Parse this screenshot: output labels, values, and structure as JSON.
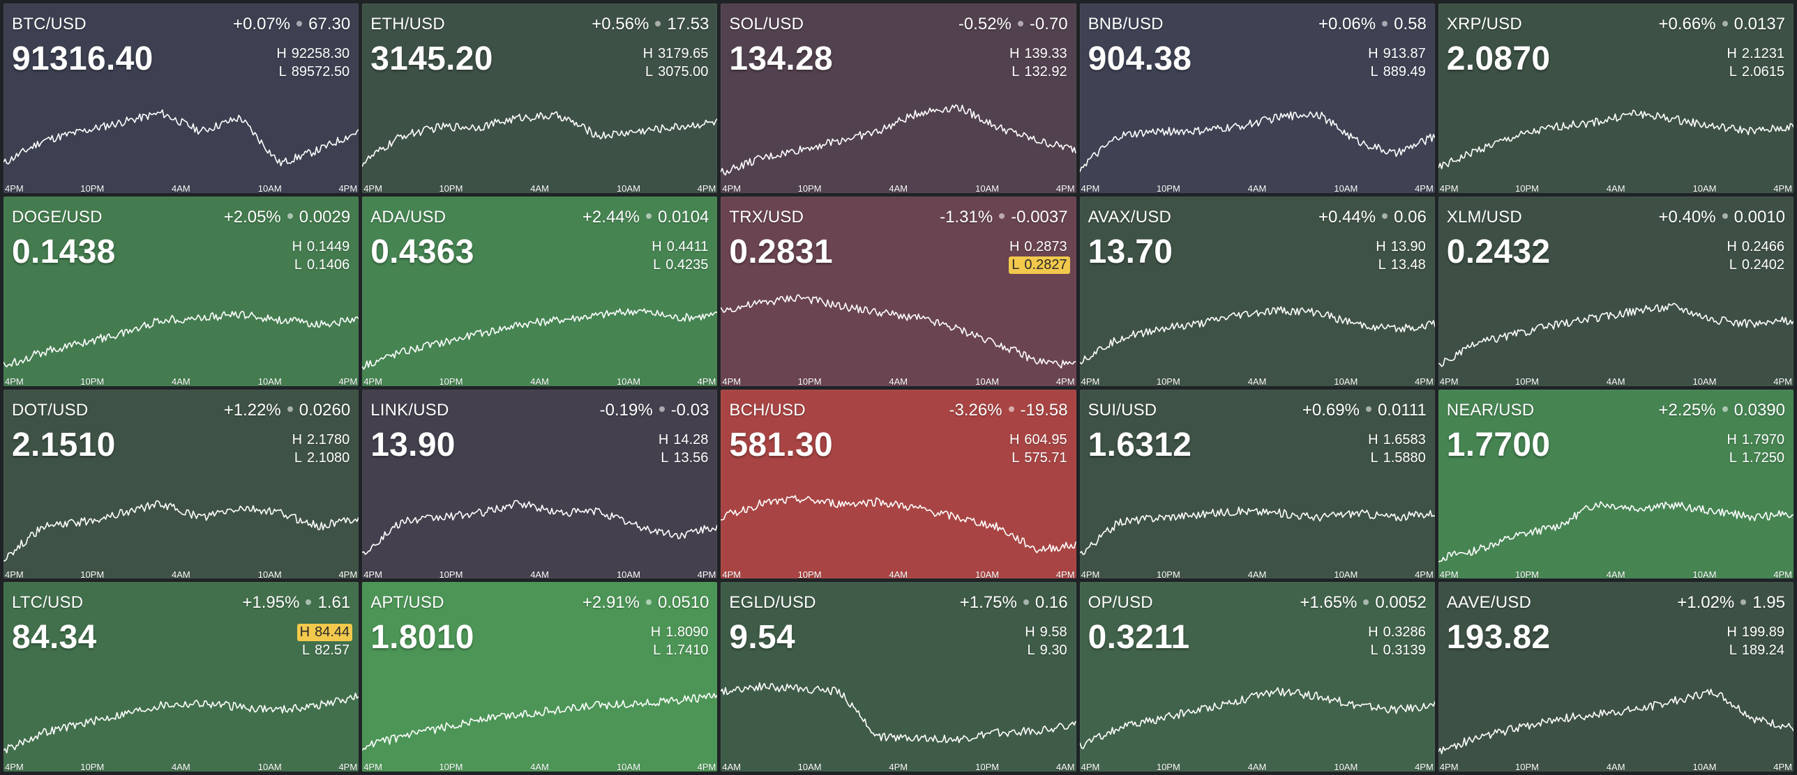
{
  "tiles": [
    {
      "symbol": "BTC/USD",
      "change_pct": "+0.07%",
      "change_abs": "67.30",
      "price": "91316.40",
      "high": "92258.30",
      "low": "89572.50",
      "color": "#3c4050",
      "trend": [
        0.2,
        0.45,
        0.55,
        0.65,
        0.75,
        0.55,
        0.7,
        0.2,
        0.35,
        0.55
      ],
      "ticks": [
        "4PM",
        "10PM",
        "4AM",
        "10AM",
        "4PM"
      ]
    },
    {
      "symbol": "ETH/USD",
      "change_pct": "+0.56%",
      "change_abs": "17.53",
      "price": "3145.20",
      "high": "3179.65",
      "low": "3075.00",
      "color": "#3e5146",
      "trend": [
        0.2,
        0.5,
        0.6,
        0.6,
        0.7,
        0.72,
        0.5,
        0.55,
        0.6,
        0.65
      ],
      "ticks": [
        "4PM",
        "10PM",
        "4AM",
        "10AM",
        "4PM"
      ]
    },
    {
      "symbol": "SOL/USD",
      "change_pct": "-0.52%",
      "change_abs": "-0.70",
      "price": "134.28",
      "high": "139.33",
      "low": "132.92",
      "color": "#52414e",
      "trend": [
        0.1,
        0.25,
        0.35,
        0.45,
        0.55,
        0.75,
        0.82,
        0.6,
        0.45,
        0.35
      ],
      "ticks": [
        "4PM",
        "10PM",
        "4AM",
        "10AM",
        "4PM"
      ]
    },
    {
      "symbol": "BNB/USD",
      "change_pct": "+0.06%",
      "change_abs": "0.58",
      "price": "904.38",
      "high": "913.87",
      "low": "889.49",
      "color": "#3e4253",
      "trend": [
        0.15,
        0.5,
        0.55,
        0.55,
        0.6,
        0.7,
        0.75,
        0.45,
        0.3,
        0.5
      ],
      "ticks": [
        "4PM",
        "10PM",
        "4AM",
        "10AM",
        "4PM"
      ]
    },
    {
      "symbol": "XRP/USD",
      "change_pct": "+0.66%",
      "change_abs": "0.0137",
      "price": "2.0870",
      "high": "2.1231",
      "low": "2.0615",
      "color": "#3d5145",
      "trend": [
        0.15,
        0.35,
        0.5,
        0.6,
        0.65,
        0.75,
        0.68,
        0.6,
        0.55,
        0.6
      ],
      "ticks": [
        "4PM",
        "10PM",
        "4AM",
        "10AM",
        "4PM"
      ]
    },
    {
      "symbol": "DOGE/USD",
      "change_pct": "+2.05%",
      "change_abs": "0.0029",
      "price": "0.1438",
      "high": "0.1449",
      "low": "0.1406",
      "color": "#447c4f",
      "trend": [
        0.1,
        0.25,
        0.35,
        0.45,
        0.6,
        0.62,
        0.66,
        0.6,
        0.55,
        0.6
      ],
      "ticks": [
        "4PM",
        "10PM",
        "4AM",
        "10AM",
        "4PM"
      ]
    },
    {
      "symbol": "ADA/USD",
      "change_pct": "+2.44%",
      "change_abs": "0.0104",
      "price": "0.4363",
      "high": "0.4411",
      "low": "0.4235",
      "color": "#468452",
      "trend": [
        0.1,
        0.25,
        0.35,
        0.45,
        0.55,
        0.6,
        0.65,
        0.7,
        0.62,
        0.65
      ],
      "ticks": [
        "4PM",
        "10PM",
        "4AM",
        "10AM",
        "4PM"
      ]
    },
    {
      "symbol": "TRX/USD",
      "change_pct": "-1.31%",
      "change_abs": "-0.0037",
      "price": "0.2831",
      "high": "0.2873",
      "low": "0.2827",
      "color": "#6a4451",
      "trend": [
        0.7,
        0.78,
        0.85,
        0.75,
        0.68,
        0.62,
        0.5,
        0.35,
        0.15,
        0.1
      ],
      "ticks": [
        "4PM",
        "10PM",
        "4AM",
        "10AM",
        "4PM"
      ],
      "low_hit": true
    },
    {
      "symbol": "AVAX/USD",
      "change_pct": "+0.44%",
      "change_abs": "0.06",
      "price": "13.70",
      "high": "13.90",
      "low": "13.48",
      "color": "#3f5246",
      "trend": [
        0.15,
        0.4,
        0.5,
        0.55,
        0.65,
        0.7,
        0.68,
        0.55,
        0.5,
        0.55
      ],
      "ticks": [
        "4PM",
        "10PM",
        "4AM",
        "10AM",
        "4PM"
      ]
    },
    {
      "symbol": "XLM/USD",
      "change_pct": "+0.40%",
      "change_abs": "0.0010",
      "price": "0.2432",
      "high": "0.2466",
      "low": "0.2402",
      "color": "#3e5045",
      "trend": [
        0.1,
        0.35,
        0.45,
        0.55,
        0.62,
        0.7,
        0.75,
        0.6,
        0.55,
        0.6
      ],
      "ticks": [
        "4PM",
        "10PM",
        "4AM",
        "10AM",
        "4PM"
      ]
    },
    {
      "symbol": "DOT/USD",
      "change_pct": "+1.22%",
      "change_abs": "0.0260",
      "price": "2.1510",
      "high": "2.1780",
      "low": "2.1080",
      "color": "#3f5246",
      "trend": [
        0.1,
        0.45,
        0.5,
        0.6,
        0.7,
        0.55,
        0.65,
        0.6,
        0.45,
        0.55
      ],
      "ticks": [
        "4PM",
        "10PM",
        "4AM",
        "10AM",
        "4PM"
      ]
    },
    {
      "symbol": "LINK/USD",
      "change_pct": "-0.19%",
      "change_abs": "-0.03",
      "price": "13.90",
      "high": "14.28",
      "low": "13.56",
      "color": "#44404e",
      "trend": [
        0.15,
        0.5,
        0.55,
        0.6,
        0.7,
        0.6,
        0.62,
        0.45,
        0.35,
        0.45
      ],
      "ticks": [
        "4PM",
        "10PM",
        "4AM",
        "10AM",
        "4PM"
      ]
    },
    {
      "symbol": "BCH/USD",
      "change_pct": "-3.26%",
      "change_abs": "-19.58",
      "price": "581.30",
      "high": "604.95",
      "low": "575.71",
      "color": "#a84544",
      "trend": [
        0.55,
        0.7,
        0.75,
        0.7,
        0.72,
        0.65,
        0.55,
        0.45,
        0.2,
        0.25
      ],
      "ticks": [
        "4PM",
        "10PM",
        "4AM",
        "10AM",
        "4PM"
      ]
    },
    {
      "symbol": "SUI/USD",
      "change_pct": "+0.69%",
      "change_abs": "0.0111",
      "price": "1.6312",
      "high": "1.6583",
      "low": "1.5880",
      "color": "#3f5246",
      "trend": [
        0.15,
        0.5,
        0.55,
        0.58,
        0.62,
        0.6,
        0.55,
        0.6,
        0.55,
        0.6
      ],
      "ticks": [
        "4PM",
        "10PM",
        "4AM",
        "10AM",
        "4PM"
      ]
    },
    {
      "symbol": "NEAR/USD",
      "change_pct": "+2.25%",
      "change_abs": "0.0390",
      "price": "1.7700",
      "high": "1.7970",
      "low": "1.7250",
      "color": "#468452",
      "trend": [
        0.1,
        0.2,
        0.35,
        0.45,
        0.7,
        0.65,
        0.68,
        0.62,
        0.55,
        0.6
      ],
      "ticks": [
        "4PM",
        "10PM",
        "4AM",
        "10AM",
        "4PM"
      ]
    },
    {
      "symbol": "LTC/USD",
      "change_pct": "+1.95%",
      "change_abs": "1.61",
      "price": "84.34",
      "high": "84.44",
      "low": "82.57",
      "color": "#42704c",
      "trend": [
        0.1,
        0.3,
        0.4,
        0.5,
        0.6,
        0.62,
        0.58,
        0.55,
        0.6,
        0.7
      ],
      "ticks": [
        "4PM",
        "10PM",
        "4AM",
        "10AM",
        "4PM"
      ],
      "high_hit": true
    },
    {
      "symbol": "APT/USD",
      "change_pct": "+2.91%",
      "change_abs": "0.0510",
      "price": "1.8010",
      "high": "1.8090",
      "low": "1.7410",
      "color": "#4c9556",
      "trend": [
        0.15,
        0.25,
        0.35,
        0.45,
        0.5,
        0.55,
        0.6,
        0.62,
        0.65,
        0.7
      ],
      "ticks": [
        "4PM",
        "10PM",
        "4AM",
        "10AM",
        "4PM"
      ]
    },
    {
      "symbol": "EGLD/USD",
      "change_pct": "+1.75%",
      "change_abs": "0.16",
      "price": "9.54",
      "high": "9.58",
      "low": "9.30",
      "color": "#3f5c48",
      "trend": [
        0.75,
        0.8,
        0.78,
        0.75,
        0.25,
        0.25,
        0.22,
        0.3,
        0.32,
        0.4
      ],
      "ticks": [
        "4AM",
        "10AM",
        "4PM",
        "10PM",
        "4AM"
      ]
    },
    {
      "symbol": "OP/USD",
      "change_pct": "+1.65%",
      "change_abs": "0.0052",
      "price": "0.3211",
      "high": "0.3286",
      "low": "0.3139",
      "color": "#42634b",
      "trend": [
        0.15,
        0.35,
        0.45,
        0.55,
        0.65,
        0.75,
        0.7,
        0.6,
        0.55,
        0.6
      ],
      "ticks": [
        "4PM",
        "10PM",
        "4AM",
        "10AM",
        "4PM"
      ]
    },
    {
      "symbol": "AAVE/USD",
      "change_pct": "+1.02%",
      "change_abs": "1.95",
      "price": "193.82",
      "high": "199.89",
      "low": "189.24",
      "color": "#3e5145",
      "trend": [
        0.1,
        0.25,
        0.35,
        0.45,
        0.5,
        0.55,
        0.65,
        0.75,
        0.45,
        0.35
      ],
      "ticks": [
        "4PM",
        "10PM",
        "4AM",
        "10AM",
        "4PM"
      ]
    }
  ],
  "labels": {
    "high_prefix": "H",
    "low_prefix": "L"
  }
}
